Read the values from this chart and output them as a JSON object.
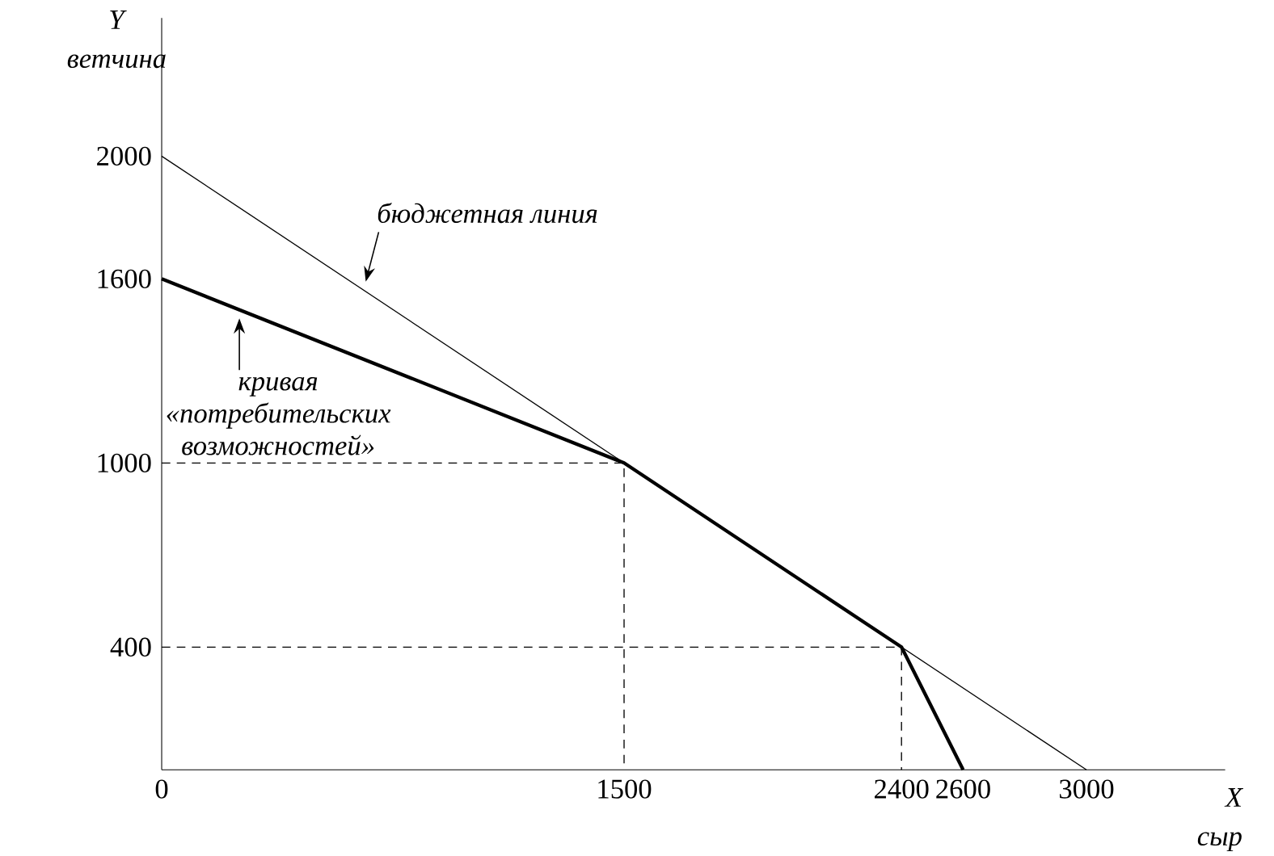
{
  "chart_data": {
    "type": "line",
    "xlabel": "X сыр",
    "ylabel": "Y ветчина",
    "xlim": [
      0,
      3450
    ],
    "ylim": [
      0,
      2450
    ],
    "xticks": [
      0,
      1500,
      2400,
      2600,
      3000
    ],
    "yticks": [
      400,
      1000,
      1600,
      2000
    ],
    "grid": false,
    "marker": "none",
    "series": [
      {
        "color": "#000000",
        "line_style": "solid",
        "x": [
          0,
          3000
        ],
        "values": [
          2000,
          0
        ]
      },
      {
        "color": "#000000",
        "line_style": "solid",
        "x": [
          0,
          1500,
          2400,
          2600
        ],
        "values": [
          1600,
          1000,
          400,
          0
        ]
      },
      {
        "color": "#000000",
        "line_style": "dashed",
        "x": [
          0,
          1500,
          1500
        ],
        "values": [
          1000,
          1000,
          0
        ]
      },
      {
        "color": "#000000",
        "line_style": "dashed",
        "x": [
          0,
          2400,
          2400
        ],
        "values": [
          400,
          400,
          0
        ]
      }
    ],
    "annotations": [
      {
        "text": "бюджетная линия",
        "x": 655,
        "y": 1563
      },
      {
        "text": "кривая «потребительских возможностей»",
        "x": 252,
        "y": 1499
      }
    ]
  }
}
